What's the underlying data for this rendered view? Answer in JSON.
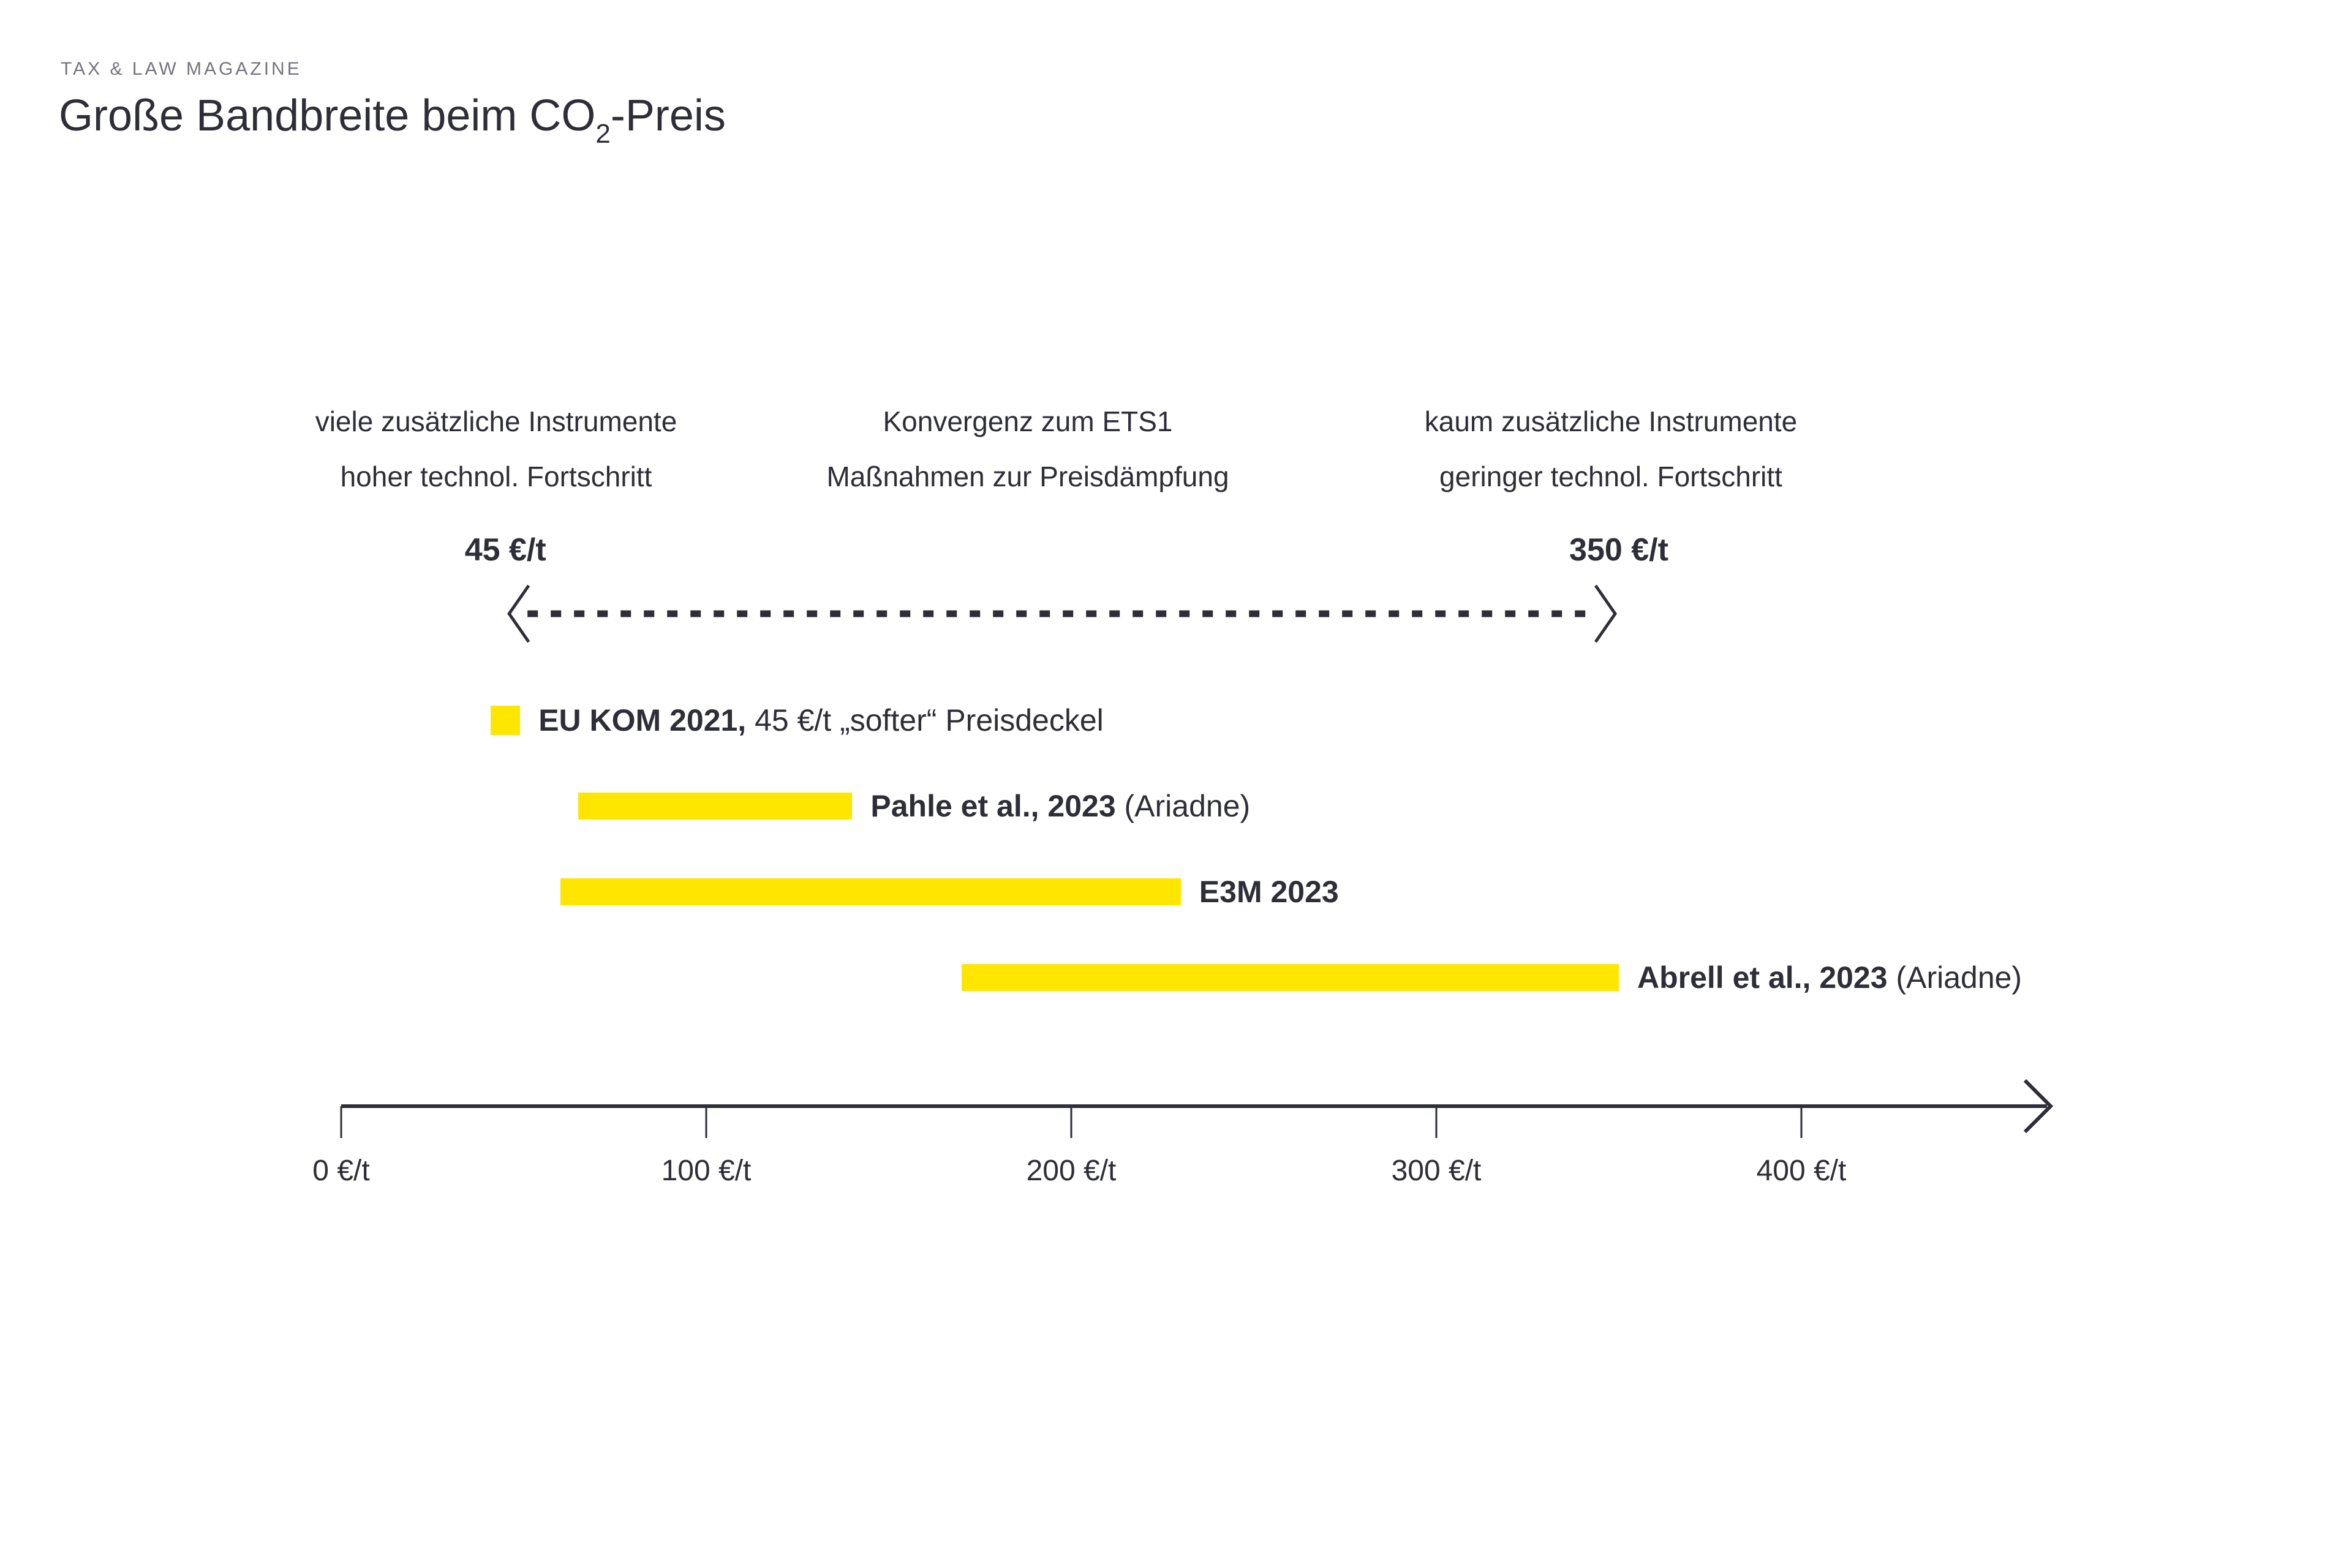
{
  "page": {
    "kicker": "TAX & LAW MAGAZINE"
  },
  "header": {
    "title_prefix": "Große Bandbreite beim CO",
    "title_subscript": "2",
    "title_suffix": "-Preis",
    "title_plain": "Große Bandbreite beim CO2-Preis"
  },
  "colors": {
    "background": "#FFFFFF",
    "accent_yellow": "#FFE600",
    "text_dark": "#2E2E38",
    "kicker_gray": "#747480"
  },
  "chart_data": {
    "type": "bar",
    "subtype": "horizontal-range-bars",
    "title": "Große Bandbreite beim CO2-Preis",
    "unit": "€/t",
    "grid": false,
    "legend_position": "inline-right-of-bars",
    "scenario_columns": [
      {
        "line1": "viele zusätzliche Instrumente",
        "line2": "hoher technol. Fortschritt"
      },
      {
        "line1": "Konvergenz zum ETS1",
        "line2": "Maßnahmen zur Preisdämpfung"
      },
      {
        "line1": "kaum zusätzliche Instrumente",
        "line2": "geringer technol. Fortschritt"
      }
    ],
    "range_arrow": {
      "style": "dashed-double-headed",
      "from_value": 45,
      "to_value": 350,
      "from_label": "45 €/t",
      "to_label": "350 €/t"
    },
    "series": [
      {
        "id": "eu-kom-2021",
        "kind": "point",
        "value": 45,
        "label_bold": "EU KOM 2021,",
        "label_regular": " 45 €/t „softer“ Preisdeckel"
      },
      {
        "id": "pahle-2023",
        "kind": "range",
        "min": 65,
        "max": 140,
        "label_bold": "Pahle et al., 2023",
        "label_regular": " (Ariadne)"
      },
      {
        "id": "e3m-2023",
        "kind": "range",
        "min": 60,
        "max": 230,
        "label_bold": "E3M 2023",
        "label_regular": ""
      },
      {
        "id": "abrell-2023",
        "kind": "range",
        "min": 170,
        "max": 350,
        "label_bold": "Abrell et al., 2023",
        "label_regular": " (Ariadne)"
      }
    ],
    "x_axis": {
      "min": 0,
      "max": 400,
      "tick_step": 100,
      "tick_labels": [
        "0 €/t",
        "100 €/t",
        "200 €/t",
        "300 €/t",
        "400 €/t"
      ],
      "arrow_right": true
    }
  }
}
